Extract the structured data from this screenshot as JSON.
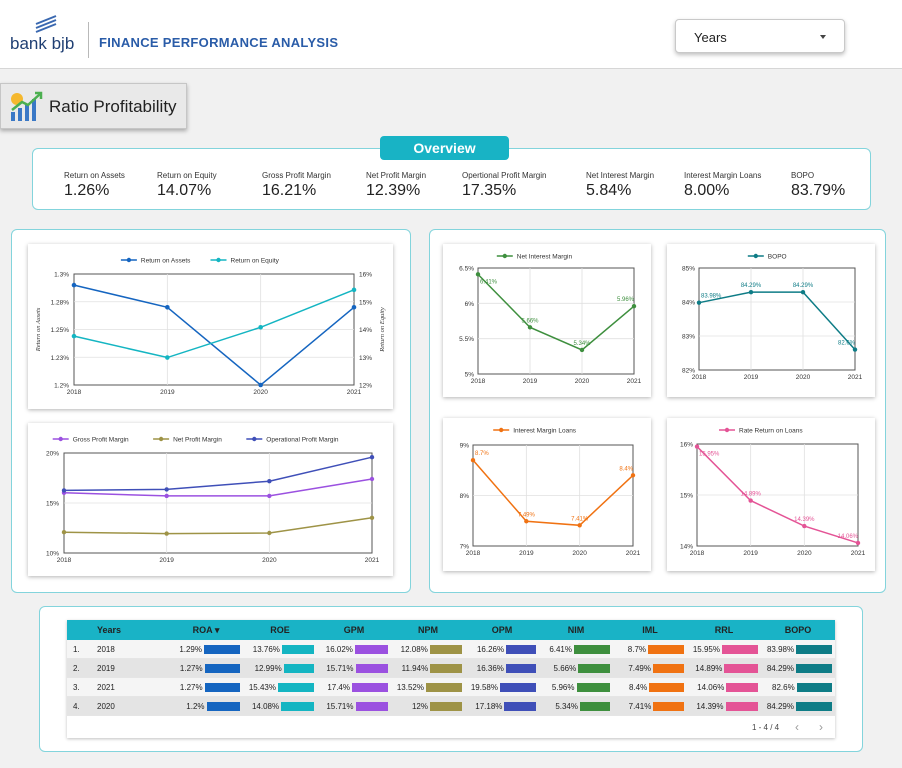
{
  "header": {
    "brand": "bank bjb",
    "title": "FINANCE PERFORMANCE ANALYSIS",
    "years_select": "Years"
  },
  "section_button": "Ratio Profitability",
  "overview": {
    "title": "Overview",
    "kpis": [
      {
        "label": "Return on Assets",
        "value": "1.26%"
      },
      {
        "label": "Return on Equity",
        "value": "14.07%"
      },
      {
        "label": "Gross Profit Margin",
        "value": "16.21%"
      },
      {
        "label": "Net Profit Margin",
        "value": "12.39%"
      },
      {
        "label": "Opertional Profit Margin",
        "value": "17.35%"
      },
      {
        "label": "Net Interest Margin",
        "value": "5.84%"
      },
      {
        "label": "Interest Margin Loans",
        "value": "8.00%"
      },
      {
        "label": "BOPO",
        "value": "83.79%"
      }
    ]
  },
  "colors": {
    "roa": "#1565c0",
    "roe": "#14b5c2",
    "gpm": "#9b51e0",
    "npm": "#9e9346",
    "opm": "#3f4fb8",
    "nim": "#3e8f3e",
    "bopo": "#0e7c86",
    "iml": "#f07212",
    "rrl": "#e45496",
    "accent": "#18b3c5"
  },
  "chart_data": [
    {
      "id": "roa_roe",
      "type": "line",
      "categories": [
        "2018",
        "2019",
        "2020",
        "2021"
      ],
      "series": [
        {
          "name": "Return on Assets",
          "axis": "left",
          "values": [
            1.29,
            1.27,
            1.2,
            1.27
          ]
        },
        {
          "name": "Return on Equity",
          "axis": "right",
          "values": [
            13.76,
            12.99,
            14.08,
            15.43
          ]
        }
      ],
      "left_ticks": [
        "1.3%",
        "1.28%",
        "1.25%",
        "1.23%",
        "1.2%"
      ],
      "left_ylim": [
        1.2,
        1.3
      ],
      "right_ticks": [
        "16%",
        "15%",
        "14%",
        "13%",
        "12%"
      ],
      "right_ylim": [
        12,
        16
      ],
      "ylabel_left": "Return on Assets",
      "ylabel_right": "Return on Equity",
      "legend": "top"
    },
    {
      "id": "margins",
      "type": "line",
      "categories": [
        "2018",
        "2019",
        "2020",
        "2021"
      ],
      "series": [
        {
          "name": "Gross Profit Margin",
          "values": [
            16.02,
            15.71,
            15.71,
            17.4
          ]
        },
        {
          "name": "Net Profit Margin",
          "values": [
            12.08,
            11.94,
            12.0,
            13.52
          ]
        },
        {
          "name": "Operational Profit Margin",
          "values": [
            16.26,
            16.36,
            17.18,
            19.58
          ]
        }
      ],
      "y_ticks": [
        "20%",
        "15%",
        "10%"
      ],
      "ylim": [
        10,
        20
      ],
      "legend": "top"
    },
    {
      "id": "nim",
      "type": "line",
      "categories": [
        "2018",
        "2019",
        "2020",
        "2021"
      ],
      "series": [
        {
          "name": "Net Interest Margin",
          "values": [
            6.41,
            5.66,
            5.34,
            5.96
          ],
          "labels": [
            "6.41%",
            "5.66%",
            "5.34%",
            "5.96%"
          ]
        }
      ],
      "y_ticks": [
        "6.5%",
        "6%",
        "5.5%",
        "5%"
      ],
      "ylim": [
        5,
        6.5
      ],
      "legend": "top"
    },
    {
      "id": "bopo",
      "type": "line",
      "categories": [
        "2018",
        "2019",
        "2020",
        "2021"
      ],
      "series": [
        {
          "name": "BOPO",
          "values": [
            83.98,
            84.29,
            84.29,
            82.6
          ],
          "labels": [
            "83.98%",
            "84.29%",
            "84.29%",
            "82.6%"
          ]
        }
      ],
      "y_ticks": [
        "85%",
        "84%",
        "83%",
        "82%"
      ],
      "ylim": [
        82,
        85
      ],
      "legend": "top"
    },
    {
      "id": "iml",
      "type": "line",
      "categories": [
        "2018",
        "2019",
        "2020",
        "2021"
      ],
      "series": [
        {
          "name": "Interest Margin Loans",
          "values": [
            8.7,
            7.49,
            7.41,
            8.4
          ],
          "labels": [
            "8.7%",
            "7.49%",
            "7.41%",
            "8.4%"
          ]
        }
      ],
      "y_ticks": [
        "9%",
        "8%",
        "7%"
      ],
      "ylim": [
        7,
        9
      ],
      "legend": "top"
    },
    {
      "id": "rrl",
      "type": "line",
      "categories": [
        "2018",
        "2019",
        "2020",
        "2021"
      ],
      "series": [
        {
          "name": "Rate Return on Loans",
          "values": [
            15.95,
            14.89,
            14.39,
            14.06
          ],
          "labels": [
            "15.95%",
            "14.89%",
            "14.39%",
            "14.06%"
          ]
        }
      ],
      "y_ticks": [
        "16%",
        "15%",
        "14%"
      ],
      "ylim": [
        14,
        16
      ],
      "legend": "top"
    },
    {
      "id": "summary_table",
      "type": "table",
      "columns": [
        "Years",
        "ROA",
        "ROE",
        "GPM",
        "NPM",
        "OPM",
        "NIM",
        "IML",
        "RRL",
        "BOPO"
      ],
      "rows": [
        {
          "idx": "1.",
          "year": "2018",
          "values": [
            1.29,
            13.76,
            16.02,
            12.08,
            16.26,
            6.41,
            8.7,
            15.95,
            83.98
          ],
          "labels": [
            "1.29%",
            "13.76%",
            "16.02%",
            "12.08%",
            "16.26%",
            "6.41%",
            "8.7%",
            "15.95%",
            "83.98%"
          ]
        },
        {
          "idx": "2.",
          "year": "2019",
          "values": [
            1.27,
            12.99,
            15.71,
            11.94,
            16.36,
            5.66,
            7.49,
            14.89,
            84.29
          ],
          "labels": [
            "1.27%",
            "12.99%",
            "15.71%",
            "11.94%",
            "16.36%",
            "5.66%",
            "7.49%",
            "14.89%",
            "84.29%"
          ]
        },
        {
          "idx": "3.",
          "year": "2021",
          "values": [
            1.27,
            15.43,
            17.4,
            13.52,
            19.58,
            5.96,
            8.4,
            14.06,
            82.6
          ],
          "labels": [
            "1.27%",
            "15.43%",
            "17.4%",
            "13.52%",
            "19.58%",
            "5.96%",
            "8.4%",
            "14.06%",
            "82.6%"
          ]
        },
        {
          "idx": "4.",
          "year": "2020",
          "values": [
            1.2,
            14.08,
            15.71,
            12.0,
            17.18,
            5.34,
            7.41,
            14.39,
            84.29
          ],
          "labels": [
            "1.2%",
            "14.08%",
            "15.71%",
            "12%",
            "17.18%",
            "5.34%",
            "7.41%",
            "14.39%",
            "84.29%"
          ]
        }
      ],
      "sort_column": "ROA",
      "pager": "1 - 4 / 4"
    }
  ]
}
